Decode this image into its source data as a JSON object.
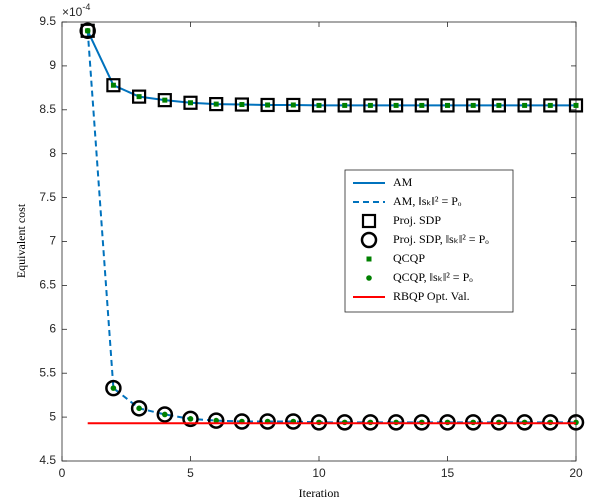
{
  "chart_data": {
    "type": "line",
    "xlabel": "Iteration",
    "ylabel": "Equivalent cost",
    "y_multiplier": "×10",
    "y_exponent": "-4",
    "x": [
      1,
      2,
      3,
      4,
      5,
      6,
      7,
      8,
      9,
      10,
      11,
      12,
      13,
      14,
      15,
      16,
      17,
      18,
      19,
      20
    ],
    "xlim": [
      0,
      20
    ],
    "xticks": [
      0,
      5,
      10,
      15,
      20
    ],
    "ylim": [
      4.5,
      9.5
    ],
    "yticks": [
      4.5,
      5,
      5.5,
      6,
      6.5,
      7,
      7.5,
      8,
      8.5,
      9,
      9.5
    ],
    "legend": "right",
    "series": [
      {
        "name": "AM",
        "color": "#0072bd",
        "line": "solid",
        "marker": "none",
        "values": [
          9.4,
          8.78,
          8.65,
          8.61,
          8.58,
          8.565,
          8.56,
          8.555,
          8.555,
          8.55,
          8.55,
          8.55,
          8.55,
          8.55,
          8.55,
          8.55,
          8.55,
          8.55,
          8.55,
          8.55
        ]
      },
      {
        "name": "AM, ‖sₖ‖² = Pₒ",
        "color": "#0072bd",
        "line": "dashed",
        "marker": "none",
        "values": [
          9.4,
          5.33,
          5.1,
          5.03,
          4.98,
          4.96,
          4.95,
          4.95,
          4.95,
          4.94,
          4.94,
          4.94,
          4.94,
          4.94,
          4.94,
          4.94,
          4.94,
          4.94,
          4.94,
          4.94
        ]
      },
      {
        "name": "Proj. SDP",
        "color": "#000000",
        "line": "none",
        "marker": "square",
        "values": [
          9.4,
          8.78,
          8.65,
          8.61,
          8.58,
          8.565,
          8.56,
          8.555,
          8.555,
          8.55,
          8.55,
          8.55,
          8.55,
          8.55,
          8.55,
          8.55,
          8.55,
          8.55,
          8.55,
          8.55
        ]
      },
      {
        "name": "Proj. SDP, ‖sₖ‖² = Pₒ",
        "color": "#000000",
        "line": "none",
        "marker": "circle",
        "values": [
          9.4,
          5.33,
          5.1,
          5.03,
          4.98,
          4.96,
          4.95,
          4.95,
          4.95,
          4.94,
          4.94,
          4.94,
          4.94,
          4.94,
          4.94,
          4.94,
          4.94,
          4.94,
          4.94,
          4.94
        ]
      },
      {
        "name": "QCQP",
        "color": "#008000",
        "line": "none",
        "marker": "small-square",
        "values": [
          9.4,
          8.78,
          8.65,
          8.61,
          8.58,
          8.565,
          8.56,
          8.555,
          8.555,
          8.55,
          8.55,
          8.55,
          8.55,
          8.55,
          8.55,
          8.55,
          8.55,
          8.55,
          8.55,
          8.55
        ]
      },
      {
        "name": "QCQP, ‖sₖ‖² = Pₒ",
        "color": "#008000",
        "line": "none",
        "marker": "dot",
        "values": [
          9.4,
          5.33,
          5.1,
          5.03,
          4.98,
          4.96,
          4.95,
          4.95,
          4.95,
          4.94,
          4.94,
          4.94,
          4.94,
          4.94,
          4.94,
          4.94,
          4.94,
          4.94,
          4.94,
          4.94
        ]
      },
      {
        "name": "RBQP Opt. Val.",
        "color": "#ff0000",
        "line": "solid",
        "marker": "none",
        "x": [
          1,
          20
        ],
        "values": [
          4.93,
          4.93
        ]
      }
    ]
  }
}
